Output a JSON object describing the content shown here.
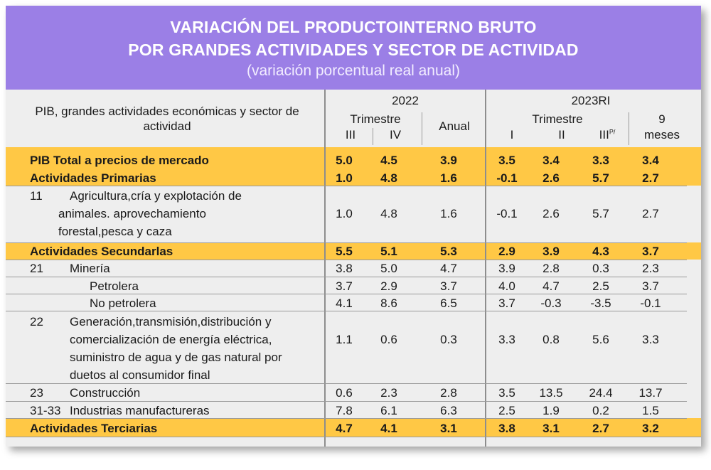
{
  "header": {
    "title_line1": "VARIACIÓN DEL PRODUCTOINTERNO BRUTO",
    "title_line2": "POR GRANDES ACTIVIDADES Y SECTOR DE ACTIVIDAD",
    "subtitle": "(variación porcentual real anual)"
  },
  "columns": {
    "row_header": "PIB, grandes actividades económicas y sector de actividad",
    "year_2022": "2022",
    "year_2023": "2023RI",
    "trimestre": "Trimestre",
    "q3": "III",
    "q4": "IV",
    "anual": "Anual",
    "q1": "I",
    "q2": "II",
    "q3p": "III",
    "q3p_sup": "P/",
    "nine_months_line1": "9",
    "nine_months_line2": "meses"
  },
  "rows": [
    {
      "code": "",
      "label": "PIB Total a precios de mercado",
      "values": [
        "5.0",
        "4.5",
        "3.9",
        "3.5",
        "3.4",
        "3.3",
        "3.4"
      ],
      "highlight": true
    },
    {
      "code": "",
      "label": "Actividades Primarias",
      "values": [
        "1.0",
        "4.8",
        "1.6",
        "-0.1",
        "2.6",
        "5.7",
        "2.7"
      ],
      "highlight": true
    },
    {
      "code": "11",
      "label_lines": [
        "Agricultura,cría y explotación de",
        "animales. aprovechamiento",
        "forestal,pesca y caza"
      ],
      "values": [
        "1.0",
        "4.8",
        "1.6",
        "-0.1",
        "2.6",
        "5.7",
        "2.7"
      ],
      "highlight": false
    },
    {
      "code": "",
      "label": "Actividades Secundarlas",
      "values": [
        "5.5",
        "5.1",
        "5.3",
        "2.9",
        "3.9",
        "4.3",
        "3.7"
      ],
      "highlight": true
    },
    {
      "code": "21",
      "label": "Minería",
      "values": [
        "3.8",
        "5.0",
        "4.7",
        "3.9",
        "2.8",
        "0.3",
        "2.3"
      ],
      "highlight": false
    },
    {
      "code": "",
      "label": "Petrolera",
      "values": [
        "3.7",
        "2.9",
        "3.7",
        "4.0",
        "4.7",
        "2.5",
        "3.7"
      ],
      "highlight": false
    },
    {
      "code": "",
      "label": "No petrolera",
      "values": [
        "4.1",
        "8.6",
        "6.5",
        "3.7",
        "-0.3",
        "-3.5",
        "-0.1"
      ],
      "highlight": false
    },
    {
      "code": "22",
      "label_lines": [
        "Generación,transmisión,distribución y",
        "comercialización de energía eléctrica,",
        "suministro de agua y de gas natural por",
        "duetos al consumidor final"
      ],
      "values": [
        "1.1",
        "0.6",
        "0.3",
        "3.3",
        "0.8",
        "5.6",
        "3.3"
      ],
      "highlight": false
    },
    {
      "code": "23",
      "label": "Construcción",
      "values": [
        "0.6",
        "2.3",
        "2.8",
        "3.5",
        "13.5",
        "24.4",
        "13.7"
      ],
      "highlight": false
    },
    {
      "code": "31-33",
      "label": "Industrias manufactureras",
      "values": [
        "7.8",
        "6.1",
        "6.3",
        "2.5",
        "1.9",
        "0.2",
        "1.5"
      ],
      "highlight": false
    },
    {
      "code": "",
      "label": "Actividades Terciarias",
      "values": [
        "4.7",
        "4.1",
        "3.1",
        "3.8",
        "3.1",
        "2.7",
        "3.2"
      ],
      "highlight": true
    }
  ],
  "colors": {
    "header_bg": "#9b7fe6",
    "highlight": "#ffc845",
    "table_bg": "#eeeeee"
  }
}
